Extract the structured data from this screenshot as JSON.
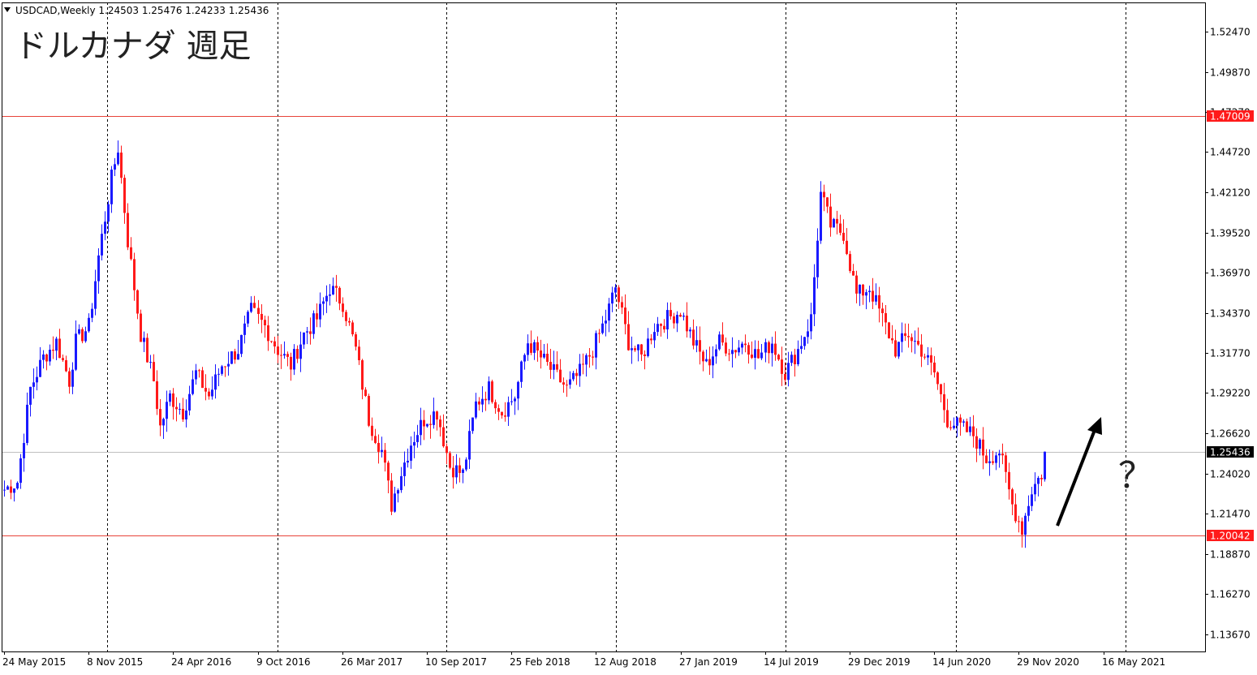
{
  "header": {
    "triangle_icon": "dropdown-triangle-icon",
    "symbol_info": "USDCAD,Weekly  1.24503 1.25476 1.24233 1.25436"
  },
  "overlay": {
    "title": "ドルカナダ 週足",
    "question": "？",
    "arrow_icon": "up-arrow-icon"
  },
  "colors": {
    "bull": "#1a1aff",
    "bear": "#ff1a1a",
    "hline": "#e8443a",
    "price_line": "#c0c0c0",
    "grid": "#000000"
  },
  "chart_data": {
    "type": "candlestick",
    "title": "",
    "xlabel": "",
    "ylabel": "",
    "ylim": [
      1.1258,
      1.5434
    ],
    "y_ticks": [
      "1.52470",
      "1.49870",
      "1.47270",
      "1.44720",
      "1.42120",
      "1.39520",
      "1.36970",
      "1.34370",
      "1.31770",
      "1.29220",
      "1.26620",
      "1.24020",
      "1.21470",
      "1.18870",
      "1.16270",
      "1.13670"
    ],
    "x_labels": [
      "24 May 2015",
      "8 Nov 2015",
      "24 Apr 2016",
      "9 Oct 2016",
      "26 Mar 2017",
      "10 Sep 2017",
      "25 Feb 2018",
      "12 Aug 2018",
      "27 Jan 2019",
      "14 Jul 2019",
      "29 Dec 2019",
      "14 Jun 2020",
      "29 Nov 2020",
      "16 May 2021"
    ],
    "horizontal_lines": [
      {
        "value": 1.47009,
        "label": "1.47009"
      },
      {
        "value": 1.20042,
        "label": "1.20042"
      }
    ],
    "last_price": {
      "value": 1.25436,
      "label": "1.25436"
    },
    "anchors": [
      [
        "2015-05-24",
        1.23
      ],
      [
        "2015-06-21",
        1.235
      ],
      [
        "2015-07-19",
        1.295
      ],
      [
        "2015-08-16",
        1.315
      ],
      [
        "2015-09-13",
        1.325
      ],
      [
        "2015-10-11",
        1.3
      ],
      [
        "2015-10-25",
        1.325
      ],
      [
        "2015-11-22",
        1.335
      ],
      [
        "2015-12-13",
        1.38
      ],
      [
        "2016-01-10",
        1.43
      ],
      [
        "2016-01-24",
        1.45
      ],
      [
        "2016-02-14",
        1.39
      ],
      [
        "2016-03-13",
        1.33
      ],
      [
        "2016-04-10",
        1.3
      ],
      [
        "2016-04-24",
        1.27
      ],
      [
        "2016-05-15",
        1.29
      ],
      [
        "2016-06-12",
        1.28
      ],
      [
        "2016-07-10",
        1.305
      ],
      [
        "2016-08-07",
        1.29
      ],
      [
        "2016-09-04",
        1.31
      ],
      [
        "2016-10-09",
        1.32
      ],
      [
        "2016-11-06",
        1.345
      ],
      [
        "2016-12-04",
        1.335
      ],
      [
        "2017-01-01",
        1.32
      ],
      [
        "2017-01-29",
        1.31
      ],
      [
        "2017-02-26",
        1.33
      ],
      [
        "2017-03-26",
        1.34
      ],
      [
        "2017-04-23",
        1.36
      ],
      [
        "2017-05-21",
        1.35
      ],
      [
        "2017-06-18",
        1.32
      ],
      [
        "2017-07-16",
        1.275
      ],
      [
        "2017-08-13",
        1.255
      ],
      [
        "2017-09-03",
        1.22
      ],
      [
        "2017-09-17",
        1.235
      ],
      [
        "2017-10-15",
        1.26
      ],
      [
        "2017-11-12",
        1.275
      ],
      [
        "2017-12-10",
        1.28
      ],
      [
        "2018-01-07",
        1.245
      ],
      [
        "2018-02-04",
        1.24
      ],
      [
        "2018-03-04",
        1.285
      ],
      [
        "2018-04-01",
        1.295
      ],
      [
        "2018-04-29",
        1.28
      ],
      [
        "2018-05-27",
        1.29
      ],
      [
        "2018-06-24",
        1.325
      ],
      [
        "2018-07-22",
        1.315
      ],
      [
        "2018-08-19",
        1.305
      ],
      [
        "2018-09-16",
        1.295
      ],
      [
        "2018-10-14",
        1.305
      ],
      [
        "2018-11-11",
        1.32
      ],
      [
        "2018-12-09",
        1.34
      ],
      [
        "2018-12-30",
        1.36
      ],
      [
        "2019-01-27",
        1.325
      ],
      [
        "2019-02-24",
        1.315
      ],
      [
        "2019-03-24",
        1.335
      ],
      [
        "2019-04-21",
        1.34
      ],
      [
        "2019-05-19",
        1.345
      ],
      [
        "2019-06-16",
        1.325
      ],
      [
        "2019-07-14",
        1.31
      ],
      [
        "2019-08-11",
        1.325
      ],
      [
        "2019-09-08",
        1.32
      ],
      [
        "2019-10-06",
        1.325
      ],
      [
        "2019-11-03",
        1.315
      ],
      [
        "2019-12-01",
        1.325
      ],
      [
        "2019-12-29",
        1.305
      ],
      [
        "2020-01-26",
        1.32
      ],
      [
        "2020-02-23",
        1.34
      ],
      [
        "2020-03-15",
        1.42
      ],
      [
        "2020-04-05",
        1.4
      ],
      [
        "2020-05-03",
        1.395
      ],
      [
        "2020-05-31",
        1.355
      ],
      [
        "2020-06-28",
        1.36
      ],
      [
        "2020-07-26",
        1.34
      ],
      [
        "2020-08-23",
        1.32
      ],
      [
        "2020-09-20",
        1.33
      ],
      [
        "2020-10-18",
        1.32
      ],
      [
        "2020-11-15",
        1.305
      ],
      [
        "2020-12-13",
        1.275
      ],
      [
        "2021-01-10",
        1.27
      ],
      [
        "2021-02-07",
        1.265
      ],
      [
        "2021-03-07",
        1.25
      ],
      [
        "2021-04-04",
        1.255
      ],
      [
        "2021-05-02",
        1.22
      ],
      [
        "2021-05-23",
        1.205
      ],
      [
        "2021-06-13",
        1.23
      ],
      [
        "2021-07-04",
        1.24
      ],
      [
        "2021-07-11",
        1.2503
      ]
    ]
  }
}
